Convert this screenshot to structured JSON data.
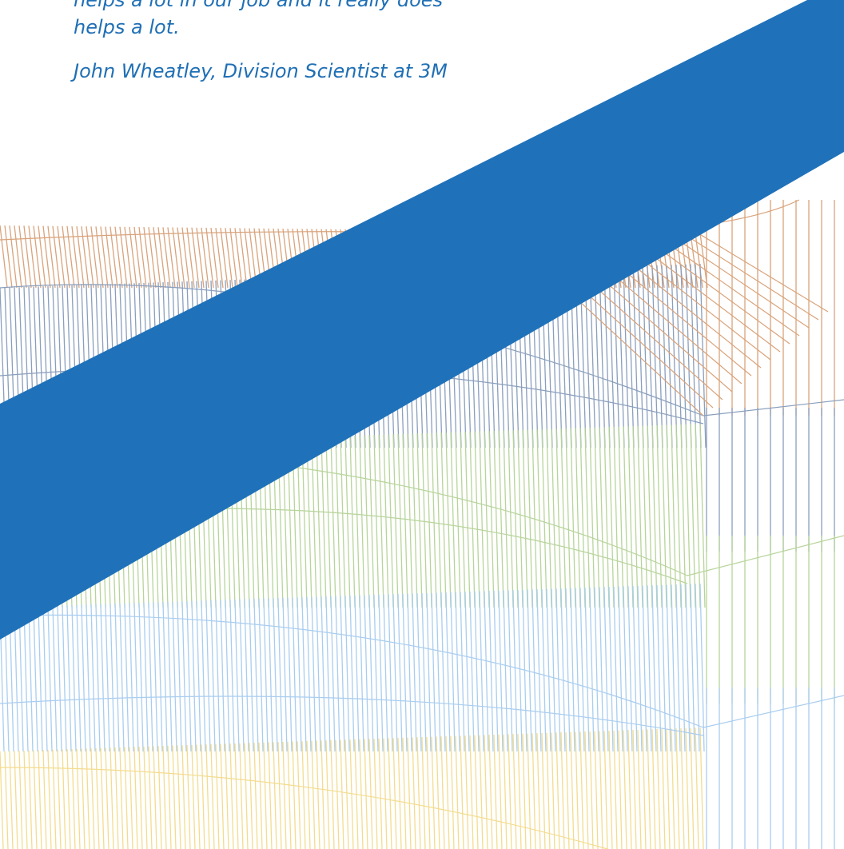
{
  "quote": {
    "cut_line": "helps a lot in our job and it really does",
    "last_line": "helps a lot.",
    "attribution": "John Wheatley, Division Scientist at 3M"
  },
  "colors": {
    "band": "#1f72ba",
    "text": "#1f6fb5",
    "mesh_orange": "#d9a37b",
    "mesh_slate": "#8a9fbd",
    "mesh_green": "#b7d49a",
    "mesh_lightblue": "#a9cdef",
    "mesh_yellow": "#f3dc8f"
  }
}
